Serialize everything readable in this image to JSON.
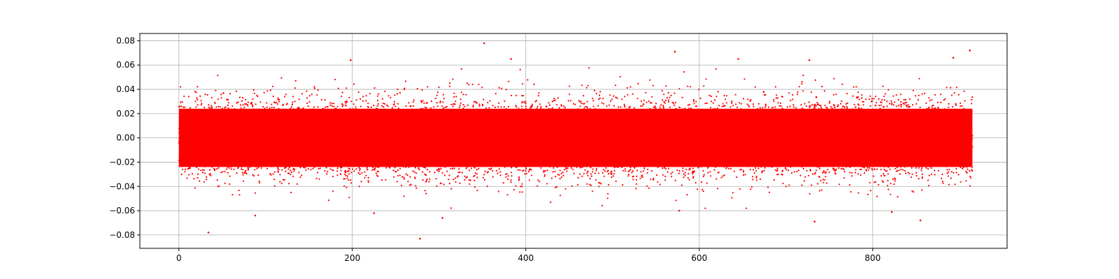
{
  "chart_data": {
    "type": "scatter",
    "title": "",
    "xlabel": "",
    "ylabel": "",
    "xlim": [
      -45,
      955
    ],
    "ylim": [
      -0.091,
      0.086
    ],
    "x_ticks": [
      0,
      200,
      400,
      600,
      800
    ],
    "x_tick_labels": [
      "0",
      "200",
      "400",
      "600",
      "800"
    ],
    "y_ticks": [
      0.08,
      0.06,
      0.04,
      0.02,
      0.0,
      -0.02,
      -0.04,
      -0.06,
      -0.08
    ],
    "y_tick_labels": [
      "0.08",
      "0.06",
      "0.04",
      "0.02",
      "0.00",
      "−0.02",
      "−0.04",
      "−0.06",
      "−0.08"
    ],
    "grid": true,
    "marker_color": "#ff0000",
    "series": [
      {
        "values_summary": "dense noise cloud centered at 0 spanning x 0 to ~915, core roughly ±0.03, extremes near ±0.08",
        "x_range": [
          0,
          915
        ],
        "core_band": [
          -0.03,
          0.03
        ],
        "outliers": [
          {
            "x": 352,
            "y": 0.078
          },
          {
            "x": 572,
            "y": 0.071
          },
          {
            "x": 912,
            "y": 0.072
          },
          {
            "x": 383,
            "y": 0.065
          },
          {
            "x": 198,
            "y": 0.064
          },
          {
            "x": 727,
            "y": 0.064
          },
          {
            "x": 645,
            "y": 0.065
          },
          {
            "x": 893,
            "y": 0.066
          },
          {
            "x": 34,
            "y": -0.078
          },
          {
            "x": 278,
            "y": -0.083
          },
          {
            "x": 733,
            "y": -0.069
          },
          {
            "x": 855,
            "y": -0.068
          },
          {
            "x": 225,
            "y": -0.062
          },
          {
            "x": 304,
            "y": -0.066
          },
          {
            "x": 88,
            "y": -0.064
          },
          {
            "x": 577,
            "y": -0.06
          },
          {
            "x": 822,
            "y": -0.061
          }
        ]
      }
    ]
  }
}
